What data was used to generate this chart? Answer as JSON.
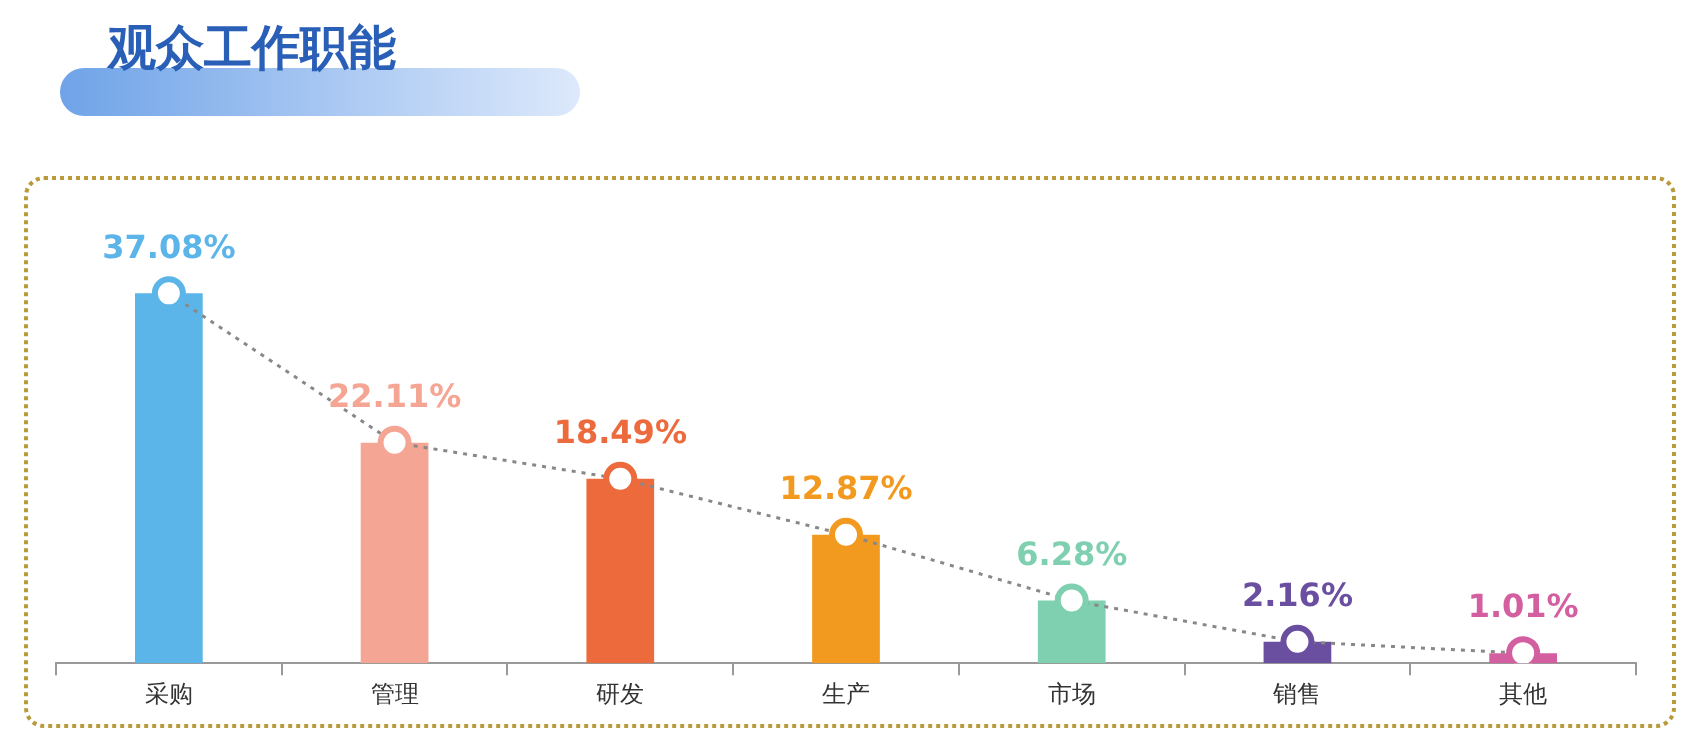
{
  "chart_data": {
    "type": "bar",
    "title": "观众工作职能",
    "categories": [
      "采购",
      "管理",
      "研发",
      "生产",
      "市场",
      "销售",
      "其他"
    ],
    "series": [
      {
        "colors": [
          "#5bb5e8",
          "#f4a593",
          "#ec6a3c",
          "#f29a1f",
          "#7fd0b0",
          "#6a4fa0",
          "#d45fa0"
        ],
        "values": [
          37.08,
          22.11,
          18.49,
          12.87,
          6.28,
          2.16,
          1.01
        ],
        "value_labels": [
          "37.08%",
          "22.11%",
          "18.49%",
          "12.87%",
          "6.28%",
          "2.16%",
          "1.01%"
        ]
      },
      {
        "type": "line",
        "color": "#888888",
        "colors": [
          "#5bb5e8",
          "#f4a593",
          "#ec6a3c",
          "#f29a1f",
          "#7fd0b0",
          "#6a4fa0",
          "#d45fa0"
        ],
        "values": [
          37.08,
          22.11,
          18.49,
          12.87,
          6.28,
          2.16,
          1.01
        ],
        "marker": "circle",
        "line_style": "dotted"
      }
    ],
    "grid": false,
    "legend": false
  }
}
